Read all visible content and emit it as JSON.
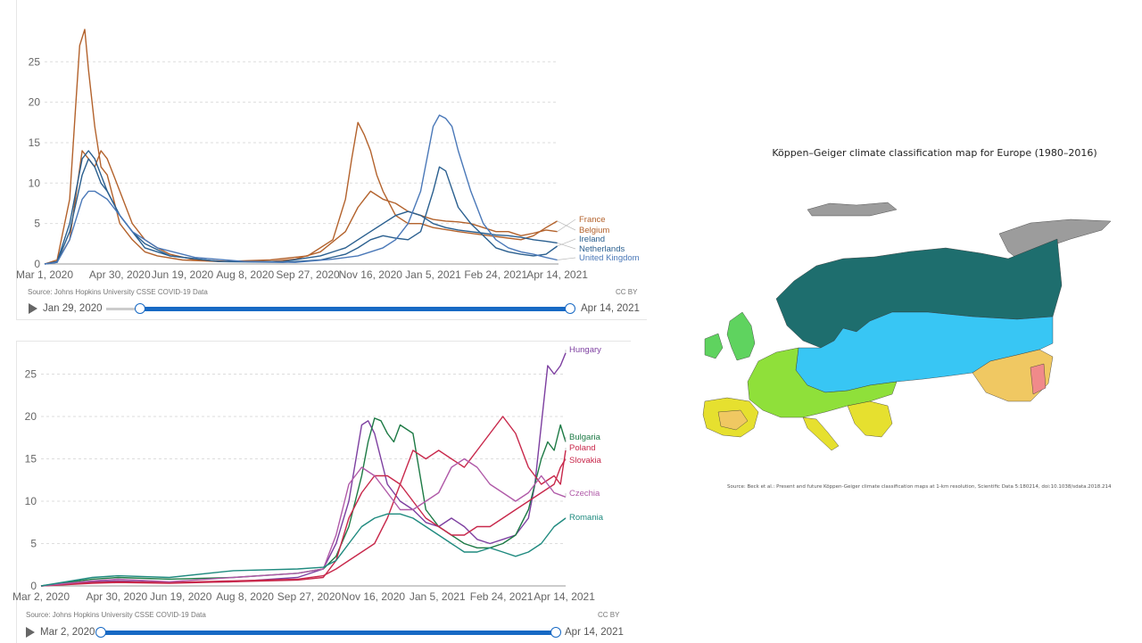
{
  "chart_data": [
    {
      "id": "top",
      "type": "line",
      "title": "",
      "ylim": [
        0,
        29
      ],
      "yticks": [
        0,
        5,
        10,
        15,
        20,
        25
      ],
      "x_tick_labels": [
        "Mar 1, 2020",
        "Apr 30, 2020",
        "Jun 19, 2020",
        "Aug 8, 2020",
        "Sep 27, 2020",
        "Nov 16, 2020",
        "Jan 5, 2021",
        "Feb 24, 2021",
        "Apr 14, 2021"
      ],
      "x_days": [
        0,
        410
      ],
      "x_tick_days": [
        0,
        60,
        110,
        160,
        210,
        260,
        310,
        360,
        409
      ],
      "source": "Source: Johns Hopkins University CSSE COVID-19 Data",
      "license": "CC BY",
      "slider_start": "Jan 29, 2020",
      "slider_end": "Apr 14, 2021",
      "series": [
        {
          "name": "France",
          "color": "#b3622c",
          "days": [
            0,
            10,
            20,
            30,
            35,
            40,
            45,
            50,
            55,
            60,
            70,
            80,
            90,
            100,
            120,
            150,
            180,
            200,
            220,
            240,
            250,
            255,
            260,
            265,
            270,
            280,
            290,
            300,
            310,
            320,
            330,
            340,
            350,
            360,
            370,
            380,
            390,
            400,
            409
          ],
          "values": [
            0,
            0.3,
            3,
            14,
            13,
            12,
            14,
            13,
            11,
            9,
            5,
            3,
            2,
            1.2,
            0.5,
            0.3,
            0.3,
            0.6,
            1.5,
            4,
            7,
            8,
            9,
            8.5,
            8,
            7.5,
            6.5,
            6,
            5.5,
            5.3,
            5.2,
            5,
            4.5,
            4,
            4,
            3.5,
            3.8,
            4.2,
            4
          ]
        },
        {
          "name": "Belgium",
          "color": "#b3622c",
          "days": [
            0,
            10,
            20,
            25,
            28,
            32,
            35,
            40,
            45,
            50,
            55,
            60,
            70,
            80,
            90,
            110,
            140,
            180,
            210,
            230,
            240,
            245,
            250,
            255,
            260,
            265,
            270,
            280,
            290,
            300,
            310,
            330,
            350,
            370,
            380,
            390,
            400,
            409
          ],
          "values": [
            0,
            0.5,
            8,
            20,
            27,
            29,
            24,
            17,
            12,
            11,
            8,
            5,
            3,
            1.5,
            1,
            0.5,
            0.3,
            0.5,
            1,
            3,
            8,
            13,
            17.5,
            16,
            14,
            11,
            9,
            6,
            5,
            5,
            4.5,
            4,
            3.6,
            3.2,
            3,
            3.5,
            4.5,
            5.3
          ]
        },
        {
          "name": "Ireland",
          "color": "#2a5f8f",
          "days": [
            0,
            10,
            20,
            30,
            35,
            40,
            45,
            50,
            60,
            70,
            80,
            100,
            140,
            190,
            220,
            240,
            250,
            260,
            270,
            280,
            290,
            300,
            310,
            315,
            320,
            330,
            340,
            350,
            360,
            370,
            380,
            390,
            400,
            409
          ],
          "values": [
            0,
            0.2,
            4,
            11,
            13,
            12,
            10,
            9,
            6,
            4,
            2,
            1,
            0.3,
            0.2,
            0.5,
            1.2,
            2,
            3,
            3.5,
            3.2,
            3,
            4,
            9,
            12,
            11.5,
            7,
            5,
            3.5,
            2,
            1.5,
            1.2,
            1,
            1.2,
            2.2
          ]
        },
        {
          "name": "Netherlands",
          "color": "#2a5f8f",
          "days": [
            0,
            10,
            20,
            30,
            35,
            40,
            45,
            50,
            60,
            70,
            80,
            100,
            140,
            190,
            220,
            240,
            250,
            260,
            270,
            280,
            290,
            300,
            310,
            320,
            330,
            340,
            350,
            360,
            370,
            380,
            390,
            400,
            409
          ],
          "values": [
            0,
            0.3,
            5,
            13,
            14,
            13,
            11,
            9,
            6,
            4,
            2.5,
            1,
            0.3,
            0.3,
            1,
            2,
            3,
            4,
            5,
            6,
            6.5,
            6,
            5,
            4.5,
            4.2,
            4,
            3.8,
            3.6,
            3.5,
            3.3,
            3,
            2.8,
            2.6
          ]
        },
        {
          "name": "United Kingdom",
          "color": "#4a78b8",
          "days": [
            0,
            10,
            20,
            30,
            35,
            40,
            50,
            60,
            70,
            90,
            120,
            160,
            200,
            230,
            250,
            260,
            270,
            280,
            290,
            300,
            305,
            310,
            315,
            320,
            325,
            330,
            340,
            350,
            360,
            370,
            380,
            390,
            400,
            409
          ],
          "values": [
            0,
            0.2,
            3,
            8,
            9,
            9,
            8,
            6,
            4,
            2,
            0.8,
            0.3,
            0.2,
            0.6,
            1,
            1.5,
            2,
            3,
            5,
            9,
            13,
            17,
            18.4,
            18,
            17,
            14,
            9,
            5,
            3,
            2,
            1.5,
            1.2,
            0.8,
            0.5
          ]
        }
      ]
    },
    {
      "id": "bottom",
      "type": "line",
      "title": "",
      "ylim": [
        0,
        28
      ],
      "yticks": [
        0,
        5,
        10,
        15,
        20,
        25
      ],
      "x_tick_labels": [
        "Mar 2, 2020",
        "Apr 30, 2020",
        "Jun 19, 2020",
        "Aug 8, 2020",
        "Sep 27, 2020",
        "Nov 16, 2020",
        "Jan 5, 2021",
        "Feb 24, 2021",
        "Apr 14, 2021"
      ],
      "x_days": [
        0,
        409
      ],
      "x_tick_days": [
        0,
        59,
        109,
        159,
        209,
        259,
        309,
        359,
        408
      ],
      "source": "Source: Johns Hopkins University CSSE COVID-19 Data",
      "license": "CC BY",
      "slider_start": "Mar 2, 2020",
      "slider_end": "Apr 14, 2021",
      "series": [
        {
          "name": "Hungary",
          "color": "#7d3fa0",
          "days": [
            0,
            40,
            60,
            100,
            150,
            200,
            220,
            230,
            240,
            250,
            255,
            260,
            265,
            270,
            280,
            290,
            300,
            310,
            320,
            330,
            340,
            350,
            360,
            370,
            380,
            385,
            390,
            395,
            400,
            405,
            409
          ],
          "values": [
            0,
            0.5,
            0.6,
            0.4,
            0.5,
            1,
            2,
            5,
            10,
            19,
            19.5,
            18,
            15,
            12,
            10,
            9,
            7.5,
            7,
            8,
            7,
            5.5,
            5,
            5.5,
            6,
            8,
            12,
            19,
            26,
            25,
            26,
            27.5
          ]
        },
        {
          "name": "Bulgaria",
          "color": "#1d7a45",
          "days": [
            0,
            40,
            60,
            100,
            150,
            200,
            220,
            230,
            240,
            250,
            255,
            260,
            265,
            270,
            275,
            280,
            290,
            300,
            310,
            320,
            330,
            340,
            350,
            360,
            370,
            380,
            390,
            395,
            400,
            405,
            409
          ],
          "values": [
            0,
            0.8,
            1,
            0.8,
            1,
            1.5,
            2,
            3.5,
            7,
            13,
            17,
            19.8,
            19.5,
            18,
            17,
            19,
            18,
            9,
            7,
            6,
            5,
            4.5,
            4.5,
            5,
            6,
            9,
            15,
            17,
            16,
            19,
            17
          ]
        },
        {
          "name": "Poland",
          "color": "#c8284b",
          "days": [
            0,
            40,
            60,
            100,
            150,
            200,
            220,
            230,
            240,
            250,
            260,
            270,
            280,
            290,
            300,
            310,
            320,
            330,
            340,
            350,
            360,
            370,
            380,
            390,
            400,
            405,
            409
          ],
          "values": [
            0,
            0.4,
            0.5,
            0.4,
            0.6,
            0.8,
            1.2,
            2,
            3,
            4,
            5,
            8,
            12,
            16,
            15,
            16,
            15,
            14,
            16,
            18,
            20,
            18,
            14,
            12,
            13,
            12,
            16
          ]
        },
        {
          "name": "Slovakia",
          "color": "#c8284b",
          "days": [
            0,
            40,
            60,
            100,
            150,
            200,
            220,
            230,
            240,
            250,
            260,
            270,
            280,
            290,
            300,
            310,
            320,
            330,
            340,
            350,
            360,
            370,
            380,
            390,
            400,
            405,
            409
          ],
          "values": [
            0,
            0.3,
            0.4,
            0.3,
            0.5,
            0.7,
            1,
            3,
            8,
            11,
            13,
            13,
            12,
            10,
            8,
            7,
            6,
            6,
            7,
            7,
            8,
            9,
            10,
            11,
            12,
            14,
            15
          ]
        },
        {
          "name": "Czechia",
          "color": "#b05aa8",
          "days": [
            0,
            40,
            60,
            100,
            150,
            200,
            220,
            230,
            240,
            250,
            260,
            270,
            280,
            290,
            300,
            310,
            320,
            330,
            340,
            350,
            360,
            370,
            380,
            390,
            400,
            409
          ],
          "values": [
            0,
            0.6,
            0.8,
            0.5,
            1,
            1.5,
            2,
            6,
            12,
            14,
            13,
            11,
            9,
            9,
            10,
            11,
            14,
            15,
            14,
            12,
            11,
            10,
            11,
            13,
            11,
            10.5
          ]
        },
        {
          "name": "Romania",
          "color": "#1f8a7f",
          "days": [
            0,
            40,
            60,
            100,
            150,
            200,
            220,
            230,
            240,
            250,
            260,
            270,
            280,
            290,
            300,
            310,
            320,
            330,
            340,
            350,
            360,
            370,
            380,
            390,
            400,
            409
          ],
          "values": [
            0,
            1,
            1.2,
            1,
            1.8,
            2,
            2.2,
            3,
            5,
            7,
            8,
            8.5,
            8.5,
            8,
            7,
            6,
            5,
            4,
            4,
            4.5,
            4,
            3.5,
            4,
            5,
            7,
            8
          ]
        }
      ]
    }
  ],
  "map": {
    "title": "Köppen–Geiger climate classification map for Europe (1980–2016)",
    "source": "Source: Beck et al.: Present and future Köppen-Geiger climate classification maps at 1-km resolution, Scientific Data 5:180214, doi:10.1038/sdata.2018.214",
    "colors": {
      "subarctic": "#1e6e6e",
      "continental": "#38c6f4",
      "oceanic": "#5fd35f",
      "temperate": "#8fe03a",
      "mediterranean": "#e6e02f",
      "arid": "#f0c862",
      "tundra": "#9c9c9c",
      "steppe": "#f08a8a"
    }
  }
}
